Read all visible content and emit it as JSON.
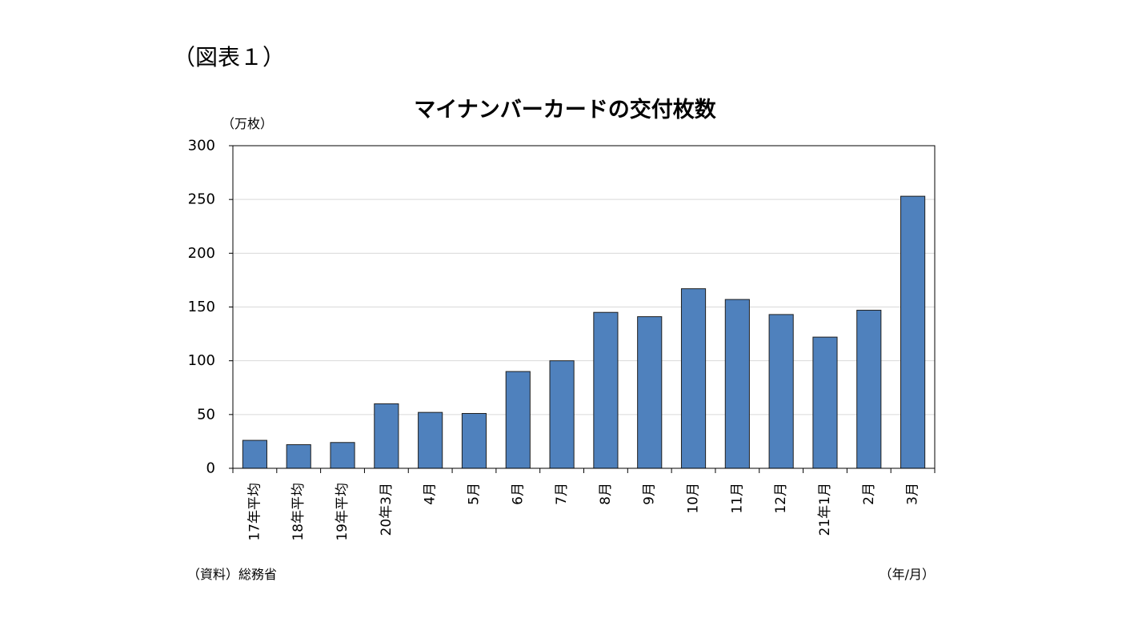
{
  "figure_label": "（図表１）",
  "source_note": "（資料）総務省",
  "chart_data": {
    "type": "bar",
    "title": "マイナンバーカードの交付枚数",
    "ylabel": "（万枚）",
    "xlabel": "（年/月）",
    "ylim": [
      0,
      300
    ],
    "yticks": [
      0,
      50,
      100,
      150,
      200,
      250,
      300
    ],
    "grid": true,
    "bar_color": "#4f81bd",
    "categories": [
      "17年平均",
      "18年平均",
      "19年平均",
      "20年3月",
      "4月",
      "5月",
      "6月",
      "7月",
      "8月",
      "9月",
      "10月",
      "11月",
      "12月",
      "21年1月",
      "2月",
      "3月"
    ],
    "values": [
      26,
      22,
      24,
      60,
      52,
      51,
      90,
      100,
      145,
      141,
      167,
      157,
      143,
      122,
      147,
      253
    ]
  }
}
